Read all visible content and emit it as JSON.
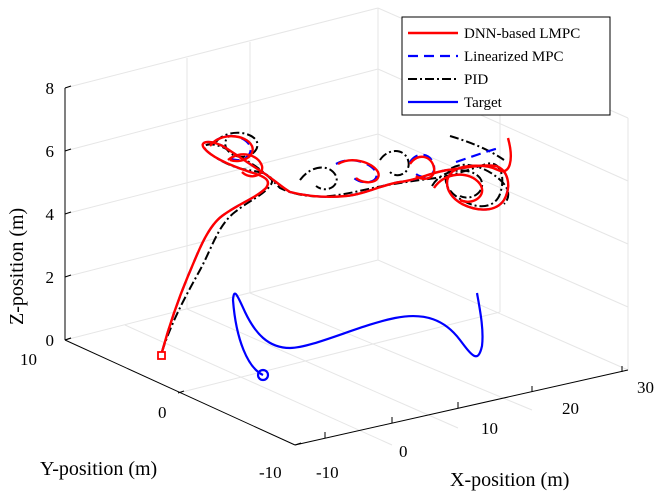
{
  "chart_data": {
    "type": "line3d",
    "xlabel": "X-position (m)",
    "ylabel": "Y-position (m)",
    "zlabel": "Z-position (m)",
    "x_ticks": [
      "-10",
      "0",
      "10",
      "20",
      "30"
    ],
    "y_ticks": [
      "10",
      "0",
      "-10"
    ],
    "z_ticks": [
      "0",
      "2",
      "4",
      "6",
      "8"
    ],
    "xlim": [
      -10,
      30
    ],
    "ylim": [
      -10,
      10
    ],
    "zlim": [
      0,
      8
    ],
    "legend_position": "top-right",
    "colors": {
      "dnn": "#ff0000",
      "linearized": "#0000ff",
      "pid": "#000000",
      "target": "#0000ff"
    },
    "series": [
      {
        "name": "DNN-based LMPC",
        "style": "solid"
      },
      {
        "name": "Linearized MPC",
        "style": "dashed"
      },
      {
        "name": "PID",
        "style": "dashdot"
      },
      {
        "name": "Target",
        "style": "solid"
      }
    ]
  }
}
